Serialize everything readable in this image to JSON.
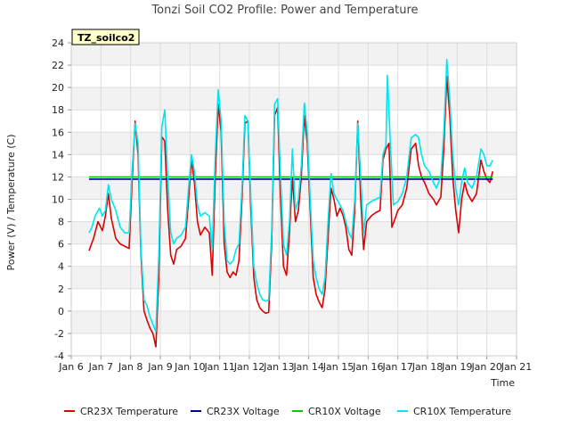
{
  "chart_data": {
    "type": "line",
    "title": "Tonzi Soil CO2 Profile: Power and Temperature",
    "xlabel": "Time",
    "ylabel": "Power (V) / Temperature (C)",
    "station_label": "TZ_soilco2",
    "xlim": [
      6,
      21
    ],
    "ylim": [
      -4,
      24
    ],
    "x_ticks": [
      {
        "v": 6,
        "label": "Jan 6"
      },
      {
        "v": 7,
        "label": "Jan 7"
      },
      {
        "v": 8,
        "label": "Jan 8"
      },
      {
        "v": 9,
        "label": "Jan 9"
      },
      {
        "v": 10,
        "label": "Jan 10"
      },
      {
        "v": 11,
        "label": "Jan 11"
      },
      {
        "v": 12,
        "label": "Jan 12"
      },
      {
        "v": 13,
        "label": "Jan 13"
      },
      {
        "v": 14,
        "label": "Jan 14"
      },
      {
        "v": 15,
        "label": "Jan 15"
      },
      {
        "v": 16,
        "label": "Jan 16"
      },
      {
        "v": 17,
        "label": "Jan 17"
      },
      {
        "v": 18,
        "label": "Jan 18"
      },
      {
        "v": 19,
        "label": "Jan 19"
      },
      {
        "v": 20,
        "label": "Jan 20"
      },
      {
        "v": 21,
        "label": "Jan 21"
      }
    ],
    "y_ticks": [
      -4,
      -2,
      0,
      2,
      4,
      6,
      8,
      10,
      12,
      14,
      16,
      18,
      20,
      22,
      24
    ],
    "grid": true,
    "legend_position": "bottom",
    "series": [
      {
        "name": "CR23X Temperature",
        "color": "#dd0000",
        "points": [
          [
            6.6,
            5.4
          ],
          [
            6.75,
            6.5
          ],
          [
            6.9,
            8.0
          ],
          [
            7.05,
            7.2
          ],
          [
            7.15,
            8.5
          ],
          [
            7.25,
            10.5
          ],
          [
            7.35,
            8.3
          ],
          [
            7.5,
            6.5
          ],
          [
            7.65,
            6.0
          ],
          [
            7.8,
            5.8
          ],
          [
            7.95,
            5.6
          ],
          [
            8.05,
            11.5
          ],
          [
            8.15,
            17.0
          ],
          [
            8.25,
            14.0
          ],
          [
            8.35,
            5.0
          ],
          [
            8.45,
            0.0
          ],
          [
            8.55,
            -0.8
          ],
          [
            8.65,
            -1.5
          ],
          [
            8.75,
            -2.0
          ],
          [
            8.85,
            -3.2
          ],
          [
            8.95,
            3.0
          ],
          [
            9.05,
            15.6
          ],
          [
            9.15,
            15.2
          ],
          [
            9.25,
            9.0
          ],
          [
            9.35,
            5.0
          ],
          [
            9.45,
            4.2
          ],
          [
            9.55,
            5.5
          ],
          [
            9.7,
            5.8
          ],
          [
            9.85,
            6.5
          ],
          [
            9.95,
            10.0
          ],
          [
            10.05,
            13.5
          ],
          [
            10.15,
            11.5
          ],
          [
            10.25,
            8.0
          ],
          [
            10.35,
            6.8
          ],
          [
            10.5,
            7.5
          ],
          [
            10.65,
            7.0
          ],
          [
            10.75,
            3.2
          ],
          [
            10.85,
            12.0
          ],
          [
            10.95,
            18.5
          ],
          [
            11.05,
            16.0
          ],
          [
            11.15,
            6.0
          ],
          [
            11.25,
            3.5
          ],
          [
            11.35,
            3.0
          ],
          [
            11.45,
            3.5
          ],
          [
            11.55,
            3.2
          ],
          [
            11.65,
            4.5
          ],
          [
            11.75,
            10.0
          ],
          [
            11.85,
            16.8
          ],
          [
            11.95,
            17.0
          ],
          [
            12.05,
            9.0
          ],
          [
            12.15,
            3.0
          ],
          [
            12.25,
            1.0
          ],
          [
            12.35,
            0.3
          ],
          [
            12.45,
            0.0
          ],
          [
            12.55,
            -0.2
          ],
          [
            12.65,
            -0.1
          ],
          [
            12.75,
            6.0
          ],
          [
            12.85,
            17.5
          ],
          [
            12.95,
            18.2
          ],
          [
            13.05,
            10.0
          ],
          [
            13.15,
            4.0
          ],
          [
            13.25,
            3.2
          ],
          [
            13.35,
            7.0
          ],
          [
            13.45,
            12.0
          ],
          [
            13.55,
            8.0
          ],
          [
            13.65,
            9.0
          ],
          [
            13.75,
            12.0
          ],
          [
            13.85,
            17.5
          ],
          [
            13.95,
            15.0
          ],
          [
            14.05,
            9.0
          ],
          [
            14.15,
            3.0
          ],
          [
            14.25,
            1.5
          ],
          [
            14.35,
            0.8
          ],
          [
            14.45,
            0.3
          ],
          [
            14.55,
            2.0
          ],
          [
            14.65,
            6.5
          ],
          [
            14.75,
            11.0
          ],
          [
            14.85,
            10.0
          ],
          [
            14.95,
            8.5
          ],
          [
            15.05,
            9.2
          ],
          [
            15.15,
            8.6
          ],
          [
            15.25,
            7.5
          ],
          [
            15.35,
            5.5
          ],
          [
            15.45,
            5.0
          ],
          [
            15.55,
            9.0
          ],
          [
            15.65,
            17.0
          ],
          [
            15.75,
            10.0
          ],
          [
            15.85,
            5.5
          ],
          [
            15.95,
            8.0
          ],
          [
            16.1,
            8.5
          ],
          [
            16.25,
            8.8
          ],
          [
            16.4,
            9.0
          ],
          [
            16.5,
            13.5
          ],
          [
            16.6,
            14.5
          ],
          [
            16.7,
            15.0
          ],
          [
            16.8,
            7.5
          ],
          [
            16.9,
            8.2
          ],
          [
            17.0,
            9.0
          ],
          [
            17.15,
            9.5
          ],
          [
            17.3,
            11.0
          ],
          [
            17.45,
            14.5
          ],
          [
            17.6,
            15.0
          ],
          [
            17.7,
            13.0
          ],
          [
            17.8,
            12.0
          ],
          [
            17.9,
            11.5
          ],
          [
            18.05,
            10.5
          ],
          [
            18.2,
            10.0
          ],
          [
            18.3,
            9.5
          ],
          [
            18.45,
            10.2
          ],
          [
            18.55,
            14.5
          ],
          [
            18.65,
            21.0
          ],
          [
            18.75,
            17.5
          ],
          [
            18.85,
            12.0
          ],
          [
            18.95,
            9.0
          ],
          [
            19.05,
            7.0
          ],
          [
            19.15,
            10.0
          ],
          [
            19.25,
            11.5
          ],
          [
            19.35,
            10.5
          ],
          [
            19.5,
            9.8
          ],
          [
            19.65,
            10.5
          ],
          [
            19.8,
            13.5
          ],
          [
            19.9,
            12.5
          ],
          [
            20.0,
            11.8
          ],
          [
            20.1,
            11.5
          ],
          [
            20.2,
            12.5
          ]
        ]
      },
      {
        "name": "CR23X Voltage",
        "color": "#000099",
        "points": [
          [
            6.6,
            11.8
          ],
          [
            20.2,
            11.8
          ]
        ]
      },
      {
        "name": "CR10X Voltage",
        "color": "#00cc00",
        "points": [
          [
            6.6,
            12.0
          ],
          [
            20.2,
            12.0
          ]
        ]
      },
      {
        "name": "CR10X Temperature",
        "color": "#00e5ee",
        "points": [
          [
            6.6,
            7.0
          ],
          [
            6.7,
            7.5
          ],
          [
            6.8,
            8.5
          ],
          [
            6.95,
            9.2
          ],
          [
            7.05,
            8.5
          ],
          [
            7.15,
            9.0
          ],
          [
            7.25,
            11.3
          ],
          [
            7.35,
            10.0
          ],
          [
            7.5,
            9.0
          ],
          [
            7.65,
            7.5
          ],
          [
            7.8,
            7.0
          ],
          [
            7.95,
            7.0
          ],
          [
            8.05,
            12.5
          ],
          [
            8.15,
            16.8
          ],
          [
            8.25,
            15.0
          ],
          [
            8.35,
            5.5
          ],
          [
            8.45,
            1.0
          ],
          [
            8.55,
            0.5
          ],
          [
            8.65,
            -0.5
          ],
          [
            8.75,
            -1.2
          ],
          [
            8.85,
            -1.8
          ],
          [
            8.95,
            5.0
          ],
          [
            9.05,
            16.5
          ],
          [
            9.15,
            18.0
          ],
          [
            9.25,
            12.0
          ],
          [
            9.35,
            7.0
          ],
          [
            9.45,
            6.0
          ],
          [
            9.55,
            6.5
          ],
          [
            9.7,
            6.8
          ],
          [
            9.85,
            7.5
          ],
          [
            9.95,
            11.0
          ],
          [
            10.05,
            14.0
          ],
          [
            10.15,
            12.5
          ],
          [
            10.25,
            9.5
          ],
          [
            10.35,
            8.5
          ],
          [
            10.5,
            8.8
          ],
          [
            10.65,
            8.5
          ],
          [
            10.75,
            5.5
          ],
          [
            10.85,
            14.0
          ],
          [
            10.95,
            19.8
          ],
          [
            11.05,
            17.0
          ],
          [
            11.15,
            8.0
          ],
          [
            11.25,
            4.5
          ],
          [
            11.35,
            4.2
          ],
          [
            11.45,
            4.5
          ],
          [
            11.55,
            5.5
          ],
          [
            11.65,
            6.0
          ],
          [
            11.75,
            11.0
          ],
          [
            11.85,
            17.5
          ],
          [
            11.95,
            17.0
          ],
          [
            12.05,
            10.0
          ],
          [
            12.15,
            4.0
          ],
          [
            12.25,
            2.5
          ],
          [
            12.35,
            1.5
          ],
          [
            12.45,
            1.0
          ],
          [
            12.55,
            0.9
          ],
          [
            12.65,
            1.0
          ],
          [
            12.75,
            7.0
          ],
          [
            12.85,
            18.5
          ],
          [
            12.95,
            19.0
          ],
          [
            13.05,
            12.0
          ],
          [
            13.15,
            6.0
          ],
          [
            13.25,
            5.0
          ],
          [
            13.35,
            8.0
          ],
          [
            13.45,
            14.5
          ],
          [
            13.55,
            9.0
          ],
          [
            13.65,
            10.0
          ],
          [
            13.75,
            13.0
          ],
          [
            13.85,
            18.6
          ],
          [
            13.95,
            16.0
          ],
          [
            14.05,
            10.0
          ],
          [
            14.15,
            4.5
          ],
          [
            14.25,
            3.0
          ],
          [
            14.35,
            2.0
          ],
          [
            14.45,
            1.5
          ],
          [
            14.55,
            3.0
          ],
          [
            14.65,
            8.0
          ],
          [
            14.75,
            12.3
          ],
          [
            14.85,
            10.5
          ],
          [
            14.95,
            10.0
          ],
          [
            15.05,
            9.5
          ],
          [
            15.15,
            9.0
          ],
          [
            15.25,
            8.0
          ],
          [
            15.35,
            7.0
          ],
          [
            15.45,
            6.5
          ],
          [
            15.55,
            10.0
          ],
          [
            15.65,
            16.8
          ],
          [
            15.75,
            12.0
          ],
          [
            15.85,
            7.0
          ],
          [
            15.95,
            9.5
          ],
          [
            16.1,
            9.8
          ],
          [
            16.25,
            10.0
          ],
          [
            16.4,
            10.2
          ],
          [
            16.5,
            14.0
          ],
          [
            16.6,
            14.8
          ],
          [
            16.65,
            21.1
          ],
          [
            16.75,
            15.0
          ],
          [
            16.85,
            9.5
          ],
          [
            17.0,
            9.8
          ],
          [
            17.15,
            10.5
          ],
          [
            17.3,
            12.0
          ],
          [
            17.45,
            15.5
          ],
          [
            17.6,
            15.8
          ],
          [
            17.7,
            15.5
          ],
          [
            17.8,
            14.0
          ],
          [
            17.9,
            13.0
          ],
          [
            18.05,
            12.5
          ],
          [
            18.2,
            11.5
          ],
          [
            18.3,
            11.0
          ],
          [
            18.45,
            12.0
          ],
          [
            18.55,
            16.0
          ],
          [
            18.65,
            22.5
          ],
          [
            18.75,
            19.0
          ],
          [
            18.85,
            14.0
          ],
          [
            18.95,
            11.0
          ],
          [
            19.05,
            9.5
          ],
          [
            19.15,
            11.5
          ],
          [
            19.25,
            12.8
          ],
          [
            19.35,
            11.5
          ],
          [
            19.5,
            11.0
          ],
          [
            19.65,
            12.0
          ],
          [
            19.8,
            14.5
          ],
          [
            19.9,
            14.0
          ],
          [
            20.0,
            13.0
          ],
          [
            20.1,
            13.0
          ],
          [
            20.2,
            13.5
          ]
        ]
      }
    ]
  }
}
